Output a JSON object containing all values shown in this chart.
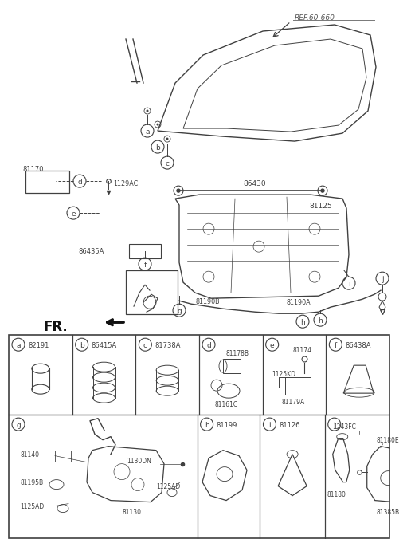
{
  "bg_color": "#ffffff",
  "line_color": "#404040",
  "ref_text": "REF.60-660",
  "table": {
    "row1_labels": [
      "a",
      "b",
      "c",
      "d",
      "e",
      "f"
    ],
    "row1_parts": [
      "82191",
      "86415A",
      "81738A",
      "",
      "",
      "86438A"
    ],
    "row2_labels": [
      "g",
      "h",
      "i",
      "j"
    ],
    "row2_parts": [
      "",
      "81199",
      "81126",
      ""
    ],
    "d_parts": [
      "81178B",
      "81161C"
    ],
    "e_parts": [
      "81174",
      "1125KD",
      "81179A"
    ],
    "g_parts": [
      "81140",
      "81195B",
      "1125AD",
      "81130",
      "1130DN",
      "1125AD"
    ],
    "j_parts": [
      "1243FC",
      "81180E",
      "81180",
      "81385B"
    ]
  }
}
